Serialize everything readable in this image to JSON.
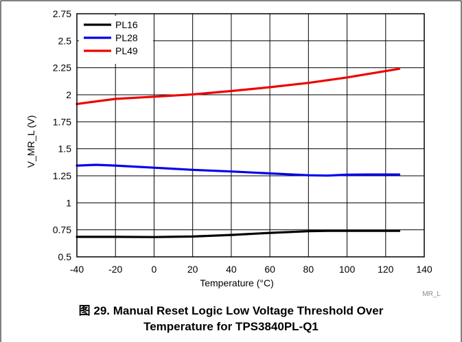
{
  "figure": {
    "caption_line1": "图 29. Manual Reset Logic Low Voltage Threshold Over",
    "caption_line2": "Temperature for TPS3840PL-Q1",
    "watermark": "MR_L"
  },
  "chart_data": {
    "type": "line",
    "xlabel": "Temperature (°C)",
    "ylabel": "V_MR_L (V)",
    "xlim": [
      -40,
      140
    ],
    "ylim": [
      0.5,
      2.75
    ],
    "x_ticks": [
      -40,
      -20,
      0,
      20,
      40,
      60,
      80,
      100,
      120,
      140
    ],
    "x_tick_labels": [
      "-40",
      "-20",
      "0",
      "20",
      "40",
      "60",
      "80",
      "100",
      "120",
      "140"
    ],
    "y_ticks": [
      0.5,
      0.75,
      1,
      1.25,
      1.5,
      1.75,
      2,
      2.25,
      2.5,
      2.75
    ],
    "y_tick_labels": [
      "0.5",
      "0.75",
      "1",
      "1.25",
      "1.5",
      "1.75",
      "2",
      "2.25",
      "2.5",
      "2.75"
    ],
    "grid": true,
    "legend_position": "top-left",
    "series": [
      {
        "name": "PL16",
        "color": "#000000",
        "x": [
          -40,
          -20,
          0,
          20,
          40,
          60,
          80,
          90,
          100,
          110,
          127
        ],
        "y": [
          0.685,
          0.685,
          0.683,
          0.688,
          0.703,
          0.722,
          0.737,
          0.74,
          0.74,
          0.74,
          0.74
        ]
      },
      {
        "name": "PL28",
        "color": "#0000ee",
        "x": [
          -40,
          -30,
          -20,
          0,
          20,
          40,
          60,
          80,
          90,
          100,
          110,
          127
        ],
        "y": [
          1.345,
          1.352,
          1.345,
          1.325,
          1.305,
          1.29,
          1.272,
          1.255,
          1.252,
          1.26,
          1.262,
          1.262
        ]
      },
      {
        "name": "PL49",
        "color": "#ee0000",
        "x": [
          -40,
          -20,
          0,
          20,
          40,
          60,
          80,
          100,
          127
        ],
        "y": [
          1.915,
          1.962,
          1.982,
          2.003,
          2.035,
          2.07,
          2.11,
          2.16,
          2.24
        ]
      }
    ]
  }
}
